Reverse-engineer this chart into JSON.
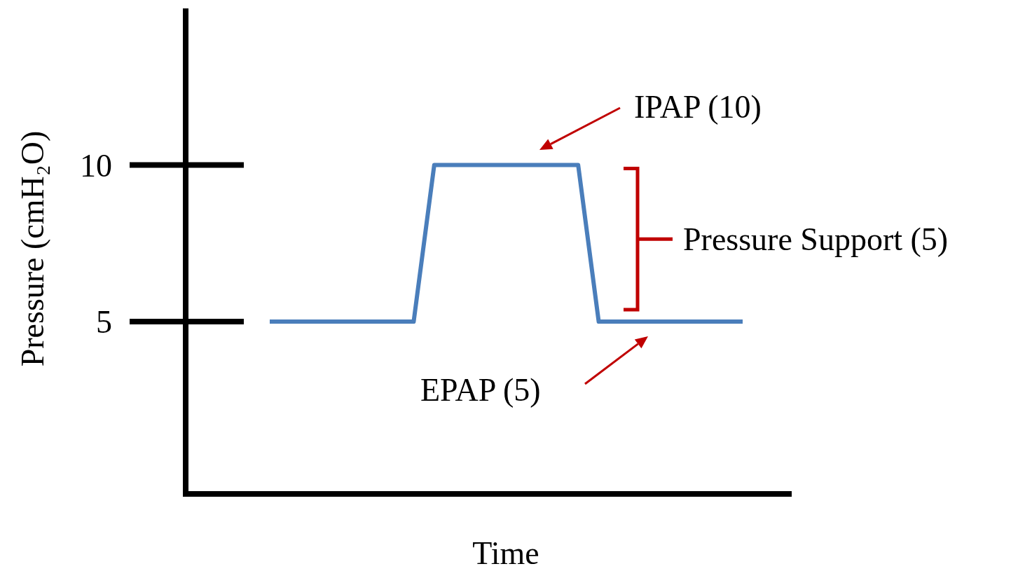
{
  "chart_data": {
    "type": "line",
    "xlabel": "Time",
    "ylabel": "Pressure (cmH₂O)",
    "categories": [
      null,
      null,
      null,
      null,
      null,
      null,
      null,
      null,
      null,
      null,
      null,
      null,
      null,
      null,
      null,
      null,
      null,
      null,
      null,
      null,
      null,
      null,
      null,
      null
    ],
    "series": [
      {
        "color": "#4a7ebb",
        "values": [
          5,
          5,
          5,
          5,
          5,
          5,
          5,
          5,
          10,
          10,
          10,
          10,
          10,
          10,
          10,
          10,
          5,
          5,
          5,
          5,
          5,
          5,
          5,
          5
        ]
      }
    ],
    "ylim": [
      -0.5,
      15
    ],
    "yticks": [
      5,
      10
    ],
    "tick_labels": "y",
    "marker": "none",
    "line_style": "solid",
    "annotations": [
      "IPAP (10)",
      "EPAP (5)",
      "Pressure Support (5)"
    ]
  }
}
